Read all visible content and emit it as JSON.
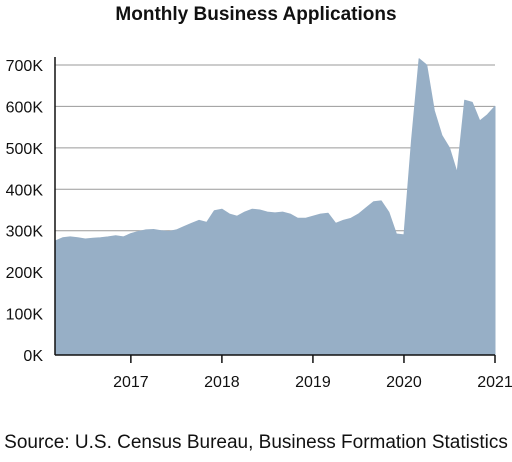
{
  "chart_data": {
    "type": "area",
    "title": "Monthly Business Applications",
    "xlabel": "",
    "ylabel": "",
    "ylim": [
      0,
      700000
    ],
    "yticks": [
      {
        "value": 0,
        "label": "0K"
      },
      {
        "value": 100000,
        "label": "100K"
      },
      {
        "value": 200000,
        "label": "200K"
      },
      {
        "value": 300000,
        "label": "300K"
      },
      {
        "value": 400000,
        "label": "400K"
      },
      {
        "value": 500000,
        "label": "500K"
      },
      {
        "value": 600000,
        "label": "600K"
      },
      {
        "value": 700000,
        "label": "700K"
      }
    ],
    "xlim": [
      "2016-03",
      "2021-01"
    ],
    "xticks": [
      {
        "value": "2017-01",
        "label": "2017"
      },
      {
        "value": "2018-01",
        "label": "2018"
      },
      {
        "value": "2019-01",
        "label": "2019"
      },
      {
        "value": "2020-01",
        "label": "2020"
      },
      {
        "value": "2021-01",
        "label": "2021"
      }
    ],
    "grid": "horizontal",
    "fill_color": "#97afc6",
    "series": [
      {
        "x": [
          "2016-03",
          "2016-04",
          "2016-05",
          "2016-06",
          "2016-07",
          "2016-08",
          "2016-09",
          "2016-10",
          "2016-11",
          "2016-12",
          "2017-01",
          "2017-02",
          "2017-03",
          "2017-04",
          "2017-05",
          "2017-06",
          "2017-07",
          "2017-08",
          "2017-09",
          "2017-10",
          "2017-11",
          "2017-12",
          "2018-01",
          "2018-02",
          "2018-03",
          "2018-04",
          "2018-05",
          "2018-06",
          "2018-07",
          "2018-08",
          "2018-09",
          "2018-10",
          "2018-11",
          "2018-12",
          "2019-01",
          "2019-02",
          "2019-03",
          "2019-04",
          "2019-05",
          "2019-06",
          "2019-07",
          "2019-08",
          "2019-09",
          "2019-10",
          "2019-11",
          "2019-12",
          "2020-01",
          "2020-02",
          "2020-03",
          "2020-04",
          "2020-05",
          "2020-06",
          "2020-07",
          "2020-08",
          "2020-09",
          "2020-10",
          "2020-11",
          "2020-12",
          "2021-01"
        ],
        "values": [
          275000,
          283000,
          285000,
          283000,
          280000,
          282000,
          283000,
          285000,
          288000,
          285000,
          293000,
          298000,
          302000,
          303000,
          300000,
          298000,
          302000,
          310000,
          318000,
          325000,
          320000,
          348000,
          352000,
          340000,
          335000,
          345000,
          352000,
          350000,
          345000,
          343000,
          345000,
          340000,
          330000,
          330000,
          335000,
          340000,
          342000,
          318000,
          325000,
          330000,
          340000,
          355000,
          370000,
          372000,
          345000,
          292000,
          290000,
          520000,
          715000,
          700000,
          590000,
          530000,
          500000,
          440000,
          615000,
          610000,
          565000,
          580000,
          600000
        ]
      }
    ]
  },
  "source": "Source: U.S. Census Bureau, Business Formation Statistics"
}
